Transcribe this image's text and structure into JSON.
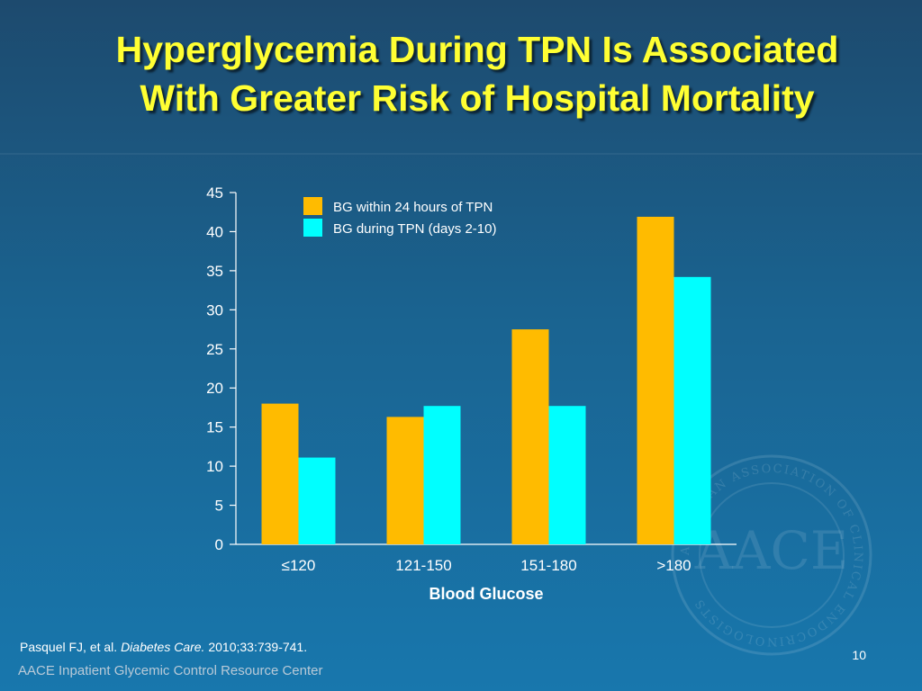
{
  "slide": {
    "title_line1": "Hyperglycemia During TPN Is Associated",
    "title_line2": "With Greater Risk of Hospital Mortality",
    "citation_authors": "Pasquel FJ, et al.",
    "citation_journal": "Diabetes Care.",
    "citation_details": "2010;33:739-741.",
    "page_number": "10",
    "footer": "AACE Inpatient Glycemic Control Resource Center",
    "seal_letters": "AACE",
    "seal_ring_text": "AMERICAN ASSOCIATION OF CLINICAL ENDOCRINOLOGISTS"
  },
  "chart_data": {
    "type": "bar",
    "title": "",
    "xlabel": "Blood Glucose",
    "ylabel": "",
    "categories": [
      "≤120",
      "121-150",
      "151-180",
      ">180"
    ],
    "series": [
      {
        "name": "BG within 24 hours of TPN",
        "color": "#ffbb00",
        "values": [
          18,
          16.3,
          27.5,
          41.9
        ]
      },
      {
        "name": "BG during TPN (days 2-10)",
        "color": "#00ffff",
        "values": [
          11.1,
          17.7,
          17.7,
          34.2
        ]
      }
    ],
    "ylim": [
      0,
      45
    ],
    "yticks": [
      "0",
      "5",
      "10",
      "15",
      "20",
      "25",
      "30",
      "35",
      "40",
      "45"
    ],
    "grid": false,
    "legend_position": "top-left"
  }
}
